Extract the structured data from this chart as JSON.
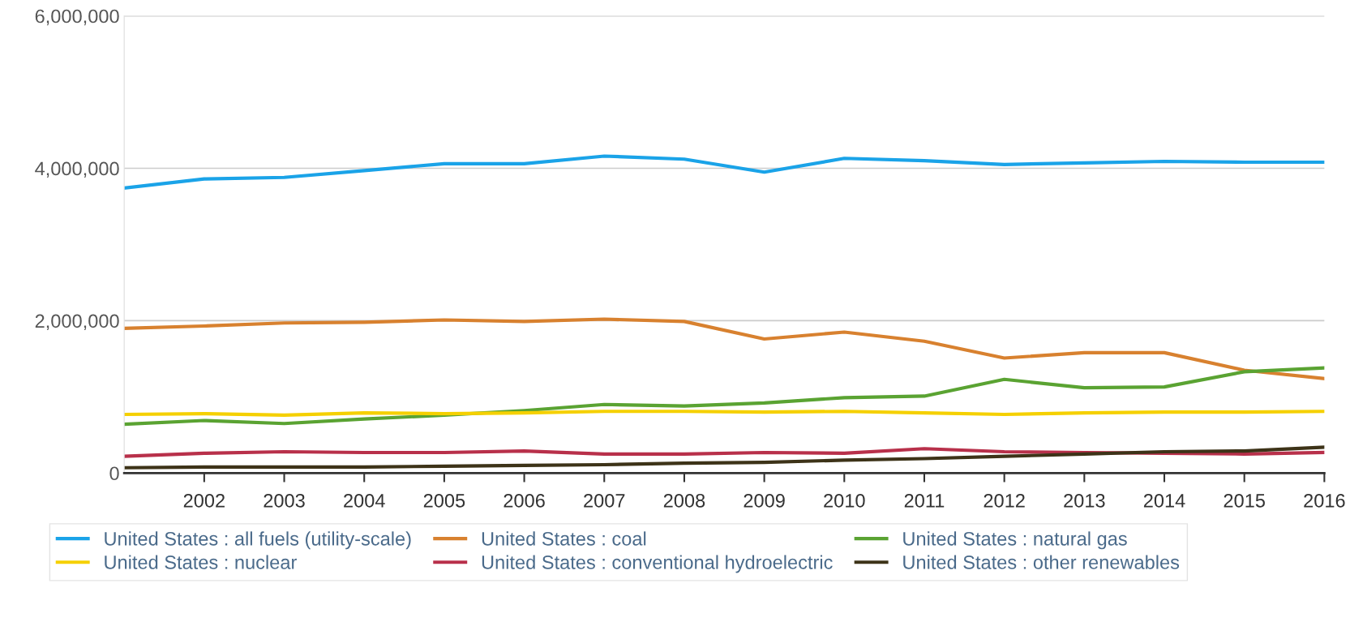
{
  "chart_data": {
    "type": "line",
    "x": [
      2001,
      2002,
      2003,
      2004,
      2005,
      2006,
      2007,
      2008,
      2009,
      2010,
      2011,
      2012,
      2013,
      2014,
      2015,
      2016
    ],
    "series": [
      {
        "name": "United States : all fuels (utility-scale)",
        "color": "#1aa3e8",
        "values": [
          3740000,
          3860000,
          3880000,
          3970000,
          4060000,
          4060000,
          4160000,
          4120000,
          3950000,
          4130000,
          4100000,
          4050000,
          4070000,
          4090000,
          4080000,
          4080000
        ]
      },
      {
        "name": "United States : coal",
        "color": "#d8812f",
        "values": [
          1900000,
          1930000,
          1970000,
          1980000,
          2010000,
          1990000,
          2020000,
          1990000,
          1760000,
          1850000,
          1730000,
          1510000,
          1580000,
          1580000,
          1350000,
          1240000
        ]
      },
      {
        "name": "United States : natural gas",
        "color": "#5aa332",
        "values": [
          640000,
          690000,
          650000,
          710000,
          760000,
          820000,
          900000,
          880000,
          920000,
          990000,
          1010000,
          1230000,
          1120000,
          1130000,
          1330000,
          1380000
        ]
      },
      {
        "name": "United States : nuclear",
        "color": "#f5d000",
        "values": [
          770000,
          780000,
          760000,
          790000,
          780000,
          790000,
          810000,
          810000,
          800000,
          810000,
          790000,
          770000,
          790000,
          800000,
          800000,
          810000
        ]
      },
      {
        "name": "United States : conventional hydroelectric",
        "color": "#b8304a",
        "values": [
          220000,
          260000,
          280000,
          270000,
          270000,
          290000,
          250000,
          250000,
          270000,
          260000,
          320000,
          280000,
          270000,
          260000,
          250000,
          270000
        ]
      },
      {
        "name": "United States : other renewables",
        "color": "#3d3318",
        "values": [
          70000,
          80000,
          80000,
          80000,
          90000,
          100000,
          110000,
          130000,
          140000,
          170000,
          190000,
          220000,
          250000,
          280000,
          290000,
          340000
        ]
      }
    ],
    "xlim": [
      2001,
      2016
    ],
    "xticks": [
      2002,
      2003,
      2004,
      2005,
      2006,
      2007,
      2008,
      2009,
      2010,
      2011,
      2012,
      2013,
      2014,
      2015,
      2016
    ],
    "ylim": [
      0,
      6000000
    ],
    "yticks": [
      0,
      {
        "value": 2000000,
        "label": "2,000,000"
      },
      {
        "value": 4000000,
        "label": "4,000,000"
      },
      {
        "value": 6000000,
        "label": "6,000,000"
      }
    ],
    "grid": "y",
    "legend": "bottom",
    "marker": "none",
    "line_style": "solid"
  }
}
